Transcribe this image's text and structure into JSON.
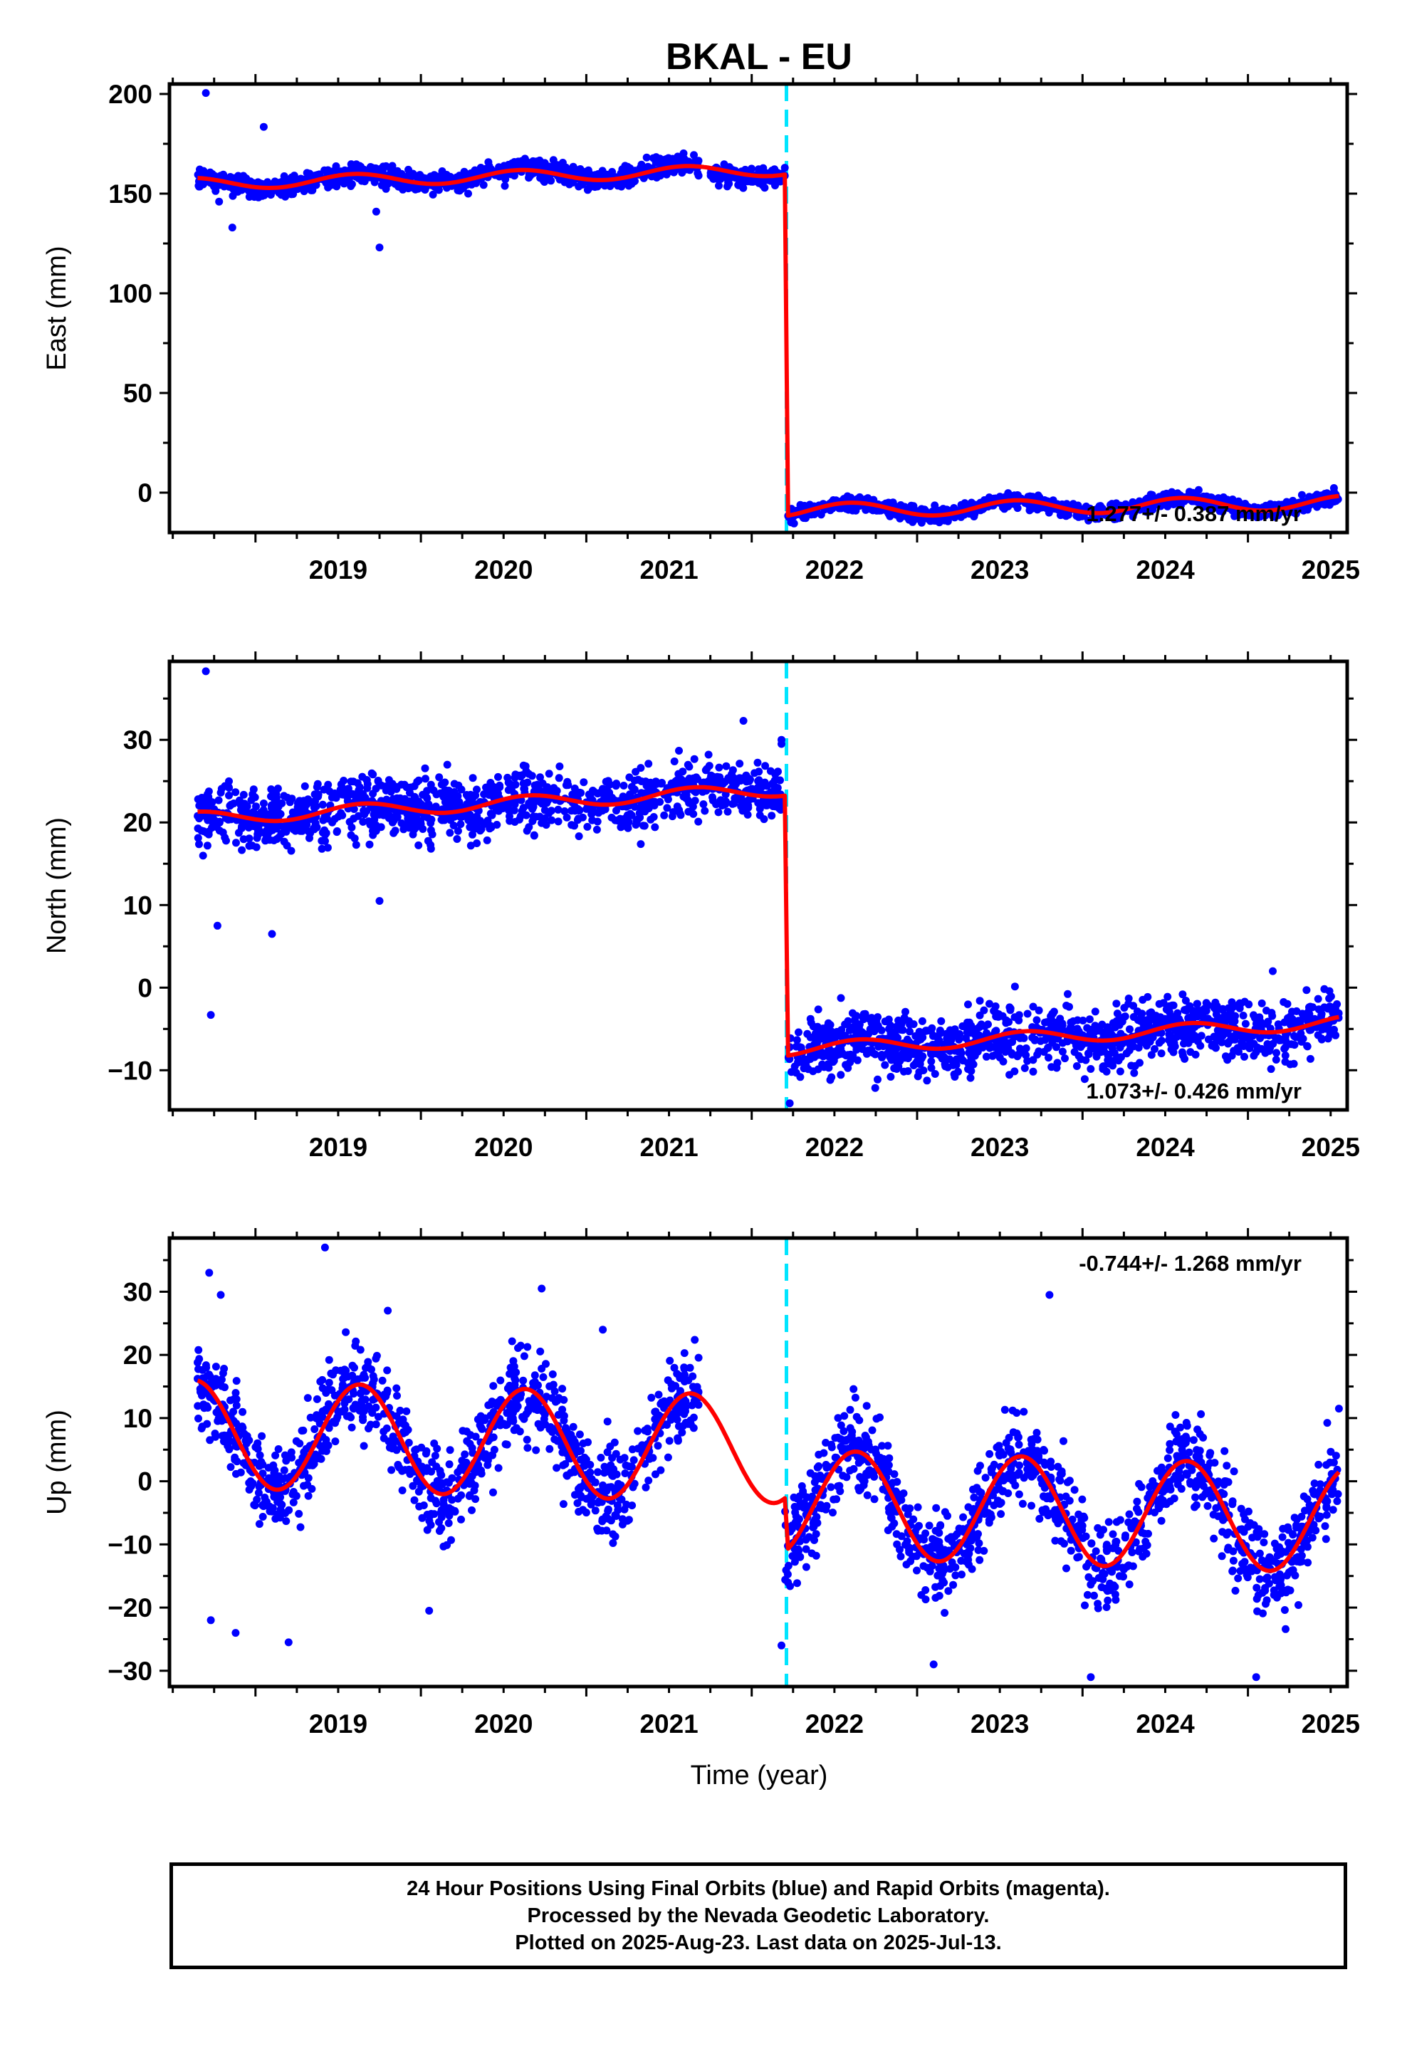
{
  "title": "BKAL - EU",
  "xlabel": "Time (year)",
  "event_year": 2022.21,
  "colors": {
    "points": "#0000ff",
    "model": "#ff0000",
    "event_line": "#00e5ff",
    "frame": "#000000"
  },
  "footer": {
    "line1": "24 Hour Positions Using Final Orbits (blue) and Rapid Orbits (magenta).",
    "line2": "Processed by the Nevada Geodetic Laboratory.",
    "line3": "Plotted on 2025-Aug-23. Last data on 2025-Jul-13."
  },
  "chart_data": [
    {
      "type": "scatter",
      "panel": "east",
      "ylabel": "East (mm)",
      "rate_label": "1.277+/- 0.387 mm/yr",
      "rate_position": "bottom-right",
      "xlim": [
        2018.48,
        2025.6
      ],
      "ylim": [
        -20,
        205
      ],
      "xticks": [
        2019,
        2020,
        2021,
        2022,
        2023,
        2024,
        2025
      ],
      "yticks": [
        0,
        50,
        100,
        150,
        200
      ],
      "grid": false,
      "series": [
        {
          "role": "daily positions",
          "color": "#0000ff",
          "segments": [
            {
              "x_range": [
                2018.65,
                2021.68
              ],
              "trend": [
                155.0,
                162.0
              ],
              "amplitude": 3.0,
              "phase": 0.35,
              "scatter": 3.5
            },
            {
              "x_range": [
                2021.75,
                2022.18
              ],
              "trend": [
                159.0,
                160.0
              ],
              "amplitude": 2.0,
              "phase": 0.35,
              "scatter": 3.0
            },
            {
              "x_range": [
                2022.22,
                2025.55
              ],
              "trend": [
                -9.0,
                -5.0
              ],
              "amplitude": 3.5,
              "phase": 0.35,
              "scatter": 2.5
            }
          ],
          "outliers": [
            [
              2018.7,
              200.5
            ],
            [
              2018.78,
              146
            ],
            [
              2018.86,
              133
            ],
            [
              2019.05,
              183.5
            ],
            [
              2019.75,
              123
            ],
            [
              2019.73,
              141
            ],
            [
              2022.2,
              163
            ],
            [
              2022.2,
              159
            ]
          ]
        },
        {
          "role": "model fit",
          "color": "#ff0000",
          "segments": [
            {
              "x_range": [
                2018.65,
                2022.2
              ],
              "trend": [
                155.0,
                162.0
              ],
              "amplitude": 3.0,
              "phase": 0.35
            },
            {
              "x_range": [
                2022.22,
                2025.55
              ],
              "trend": [
                -9.0,
                -5.0
              ],
              "amplitude": 3.5,
              "phase": 0.35
            }
          ]
        }
      ]
    },
    {
      "type": "scatter",
      "panel": "north",
      "ylabel": "North (mm)",
      "rate_label": "1.073+/- 0.426 mm/yr",
      "rate_position": "bottom-right",
      "xlim": [
        2018.48,
        2025.6
      ],
      "ylim": [
        -14.8,
        39.5
      ],
      "xticks": [
        2019,
        2020,
        2021,
        2022,
        2023,
        2024,
        2025
      ],
      "yticks": [
        -10,
        0,
        10,
        20,
        30
      ],
      "grid": false,
      "series": [
        {
          "role": "daily positions",
          "color": "#0000ff",
          "segments": [
            {
              "x_range": [
                2018.65,
                2021.68
              ],
              "trend": [
                20.5,
                23.5
              ],
              "amplitude": 0.8,
              "phase": 0.4,
              "scatter": 2.6
            },
            {
              "x_range": [
                2021.7,
                2022.18
              ],
              "trend": [
                24.0,
                24.0
              ],
              "amplitude": 0.5,
              "phase": 0.4,
              "scatter": 2.0
            },
            {
              "x_range": [
                2022.22,
                2025.55
              ],
              "trend": [
                -7.5,
                -4.2
              ],
              "amplitude": 0.8,
              "phase": 0.4,
              "scatter": 2.6
            }
          ],
          "outliers": [
            [
              2018.7,
              38.3
            ],
            [
              2018.73,
              -3.3
            ],
            [
              2018.77,
              7.5
            ],
            [
              2019.1,
              6.5
            ],
            [
              2019.75,
              10.5
            ],
            [
              2021.95,
              32.3
            ],
            [
              2021.95,
              22.5
            ],
            [
              2022.18,
              30
            ],
            [
              2022.18,
              29.5
            ],
            [
              2022.23,
              -14
            ],
            [
              2025.15,
              2
            ]
          ]
        },
        {
          "role": "model fit",
          "color": "#ff0000",
          "segments": [
            {
              "x_range": [
                2018.65,
                2022.2
              ],
              "trend": [
                20.5,
                24.0
              ],
              "amplitude": 0.8,
              "phase": 0.4
            },
            {
              "x_range": [
                2022.22,
                2025.55
              ],
              "trend": [
                -7.5,
                -4.2
              ],
              "amplitude": 0.8,
              "phase": 0.4
            }
          ]
        }
      ]
    },
    {
      "type": "scatter",
      "panel": "up",
      "ylabel": "Up (mm)",
      "rate_label": "-0.744+/- 1.268 mm/yr",
      "rate_position": "top-right",
      "xlim": [
        2018.48,
        2025.6
      ],
      "ylim": [
        -32.5,
        38.5
      ],
      "xticks": [
        2019,
        2020,
        2021,
        2022,
        2023,
        2024,
        2025
      ],
      "yticks": [
        -30,
        -20,
        -10,
        0,
        10,
        20,
        30
      ],
      "grid": false,
      "series": [
        {
          "role": "daily positions",
          "color": "#0000ff",
          "segments": [
            {
              "x_range": [
                2018.65,
                2021.68
              ],
              "trend": [
                7.5,
                5.5
              ],
              "amplitude": 8.5,
              "phase": 0.38,
              "scatter": 5.0
            },
            {
              "x_range": [
                2022.2,
                2025.55
              ],
              "trend": [
                -3.5,
                -6.0
              ],
              "amplitude": 8.5,
              "phase": 0.38,
              "scatter": 5.0
            }
          ],
          "outliers": [
            [
              2018.72,
              33
            ],
            [
              2018.79,
              29.5
            ],
            [
              2018.73,
              -22
            ],
            [
              2019.42,
              37
            ],
            [
              2019.8,
              27
            ],
            [
              2020.73,
              30.5
            ],
            [
              2023.8,
              29.5
            ],
            [
              2022.18,
              -26
            ],
            [
              2024.05,
              -31
            ],
            [
              2025.05,
              -31
            ],
            [
              2025.55,
              11.5
            ],
            [
              2018.88,
              -24
            ],
            [
              2019.2,
              -25.5
            ],
            [
              2020.05,
              -20.5
            ],
            [
              2023.1,
              -29
            ],
            [
              2021.1,
              24
            ]
          ]
        },
        {
          "role": "model fit",
          "color": "#ff0000",
          "segments": [
            {
              "x_range": [
                2018.65,
                2022.2
              ],
              "trend": [
                7.5,
                5.0
              ],
              "amplitude": 8.5,
              "phase": 0.38
            },
            {
              "x_range": [
                2022.22,
                2025.55
              ],
              "trend": [
                -3.5,
                -6.0
              ],
              "amplitude": 8.5,
              "phase": 0.38
            }
          ]
        }
      ]
    }
  ]
}
